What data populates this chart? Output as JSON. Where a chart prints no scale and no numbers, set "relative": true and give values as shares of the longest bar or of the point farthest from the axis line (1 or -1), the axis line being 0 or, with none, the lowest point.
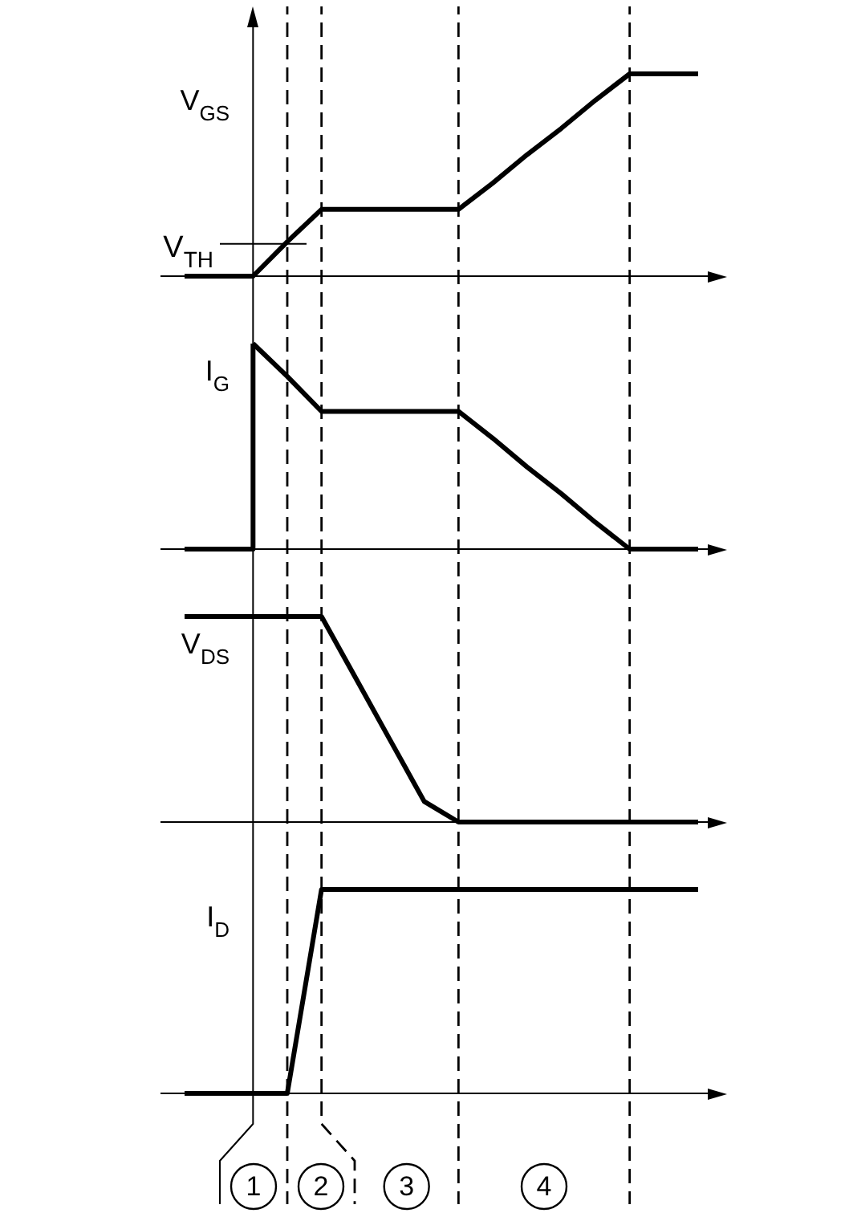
{
  "chart_data": [
    {
      "type": "line",
      "relative": true,
      "ylabel": "V$_{GS}$",
      "grid": "x",
      "categories": [
        null,
        null,
        null,
        null,
        null,
        null,
        null,
        null,
        null,
        null,
        null,
        null,
        null,
        null,
        null,
        null
      ],
      "series": [
        {
          "color": "#000000",
          "values": [
            0,
            0,
            0,
            0.17,
            0.33,
            0.33,
            0.33,
            0.33,
            0.33,
            0.46,
            0.6,
            0.73,
            0.87,
            1,
            1,
            1
          ]
        }
      ],
      "ref_lines": [
        {
          "axis": "y",
          "value": 0.16,
          "label": "V$_{TH}$",
          "color": "#000000"
        }
      ]
    },
    {
      "type": "line",
      "relative": true,
      "ylabel": "I$_{G}$",
      "grid": "x",
      "categories": [
        null,
        null,
        null,
        null,
        null,
        null,
        null,
        null,
        null,
        null,
        null,
        null,
        null,
        null,
        null,
        null
      ],
      "series": [
        {
          "type": "step",
          "color": "#000000",
          "values": [
            0,
            0,
            1,
            null,
            null,
            null,
            null,
            null,
            null,
            null,
            null,
            null,
            null,
            null,
            null,
            null
          ]
        },
        {
          "color": "#000000",
          "values": [
            null,
            null,
            1,
            0.84,
            0.67,
            0.67,
            0.67,
            0.67,
            0.67,
            0.54,
            0.4,
            0.27,
            0.13,
            0,
            0,
            0
          ]
        }
      ]
    },
    {
      "type": "line",
      "relative": true,
      "ylabel": "V$_{DS}$",
      "grid": "x",
      "categories": [
        null,
        null,
        null,
        null,
        null,
        null,
        null,
        null,
        null,
        null,
        null,
        null,
        null,
        null,
        null,
        null
      ],
      "series": [
        {
          "color": "#000000",
          "values": [
            1,
            1,
            1,
            1,
            1,
            0.7,
            0.4,
            0.1,
            0,
            0,
            0,
            0,
            0,
            0,
            0,
            0
          ]
        }
      ]
    },
    {
      "type": "line",
      "relative": true,
      "ylabel": "I$_{D}$",
      "grid": "x",
      "categories": [
        null,
        null,
        null,
        null,
        null,
        null,
        null,
        null,
        null,
        null,
        null,
        null,
        null,
        null,
        null,
        null
      ],
      "series": [
        {
          "color": "#000000",
          "values": [
            0,
            0,
            0,
            0,
            1,
            1,
            1,
            1,
            1,
            1,
            1,
            1,
            1,
            1,
            1,
            1
          ]
        }
      ],
      "annotations": [
        "1",
        "2",
        "3",
        "4"
      ]
    }
  ]
}
